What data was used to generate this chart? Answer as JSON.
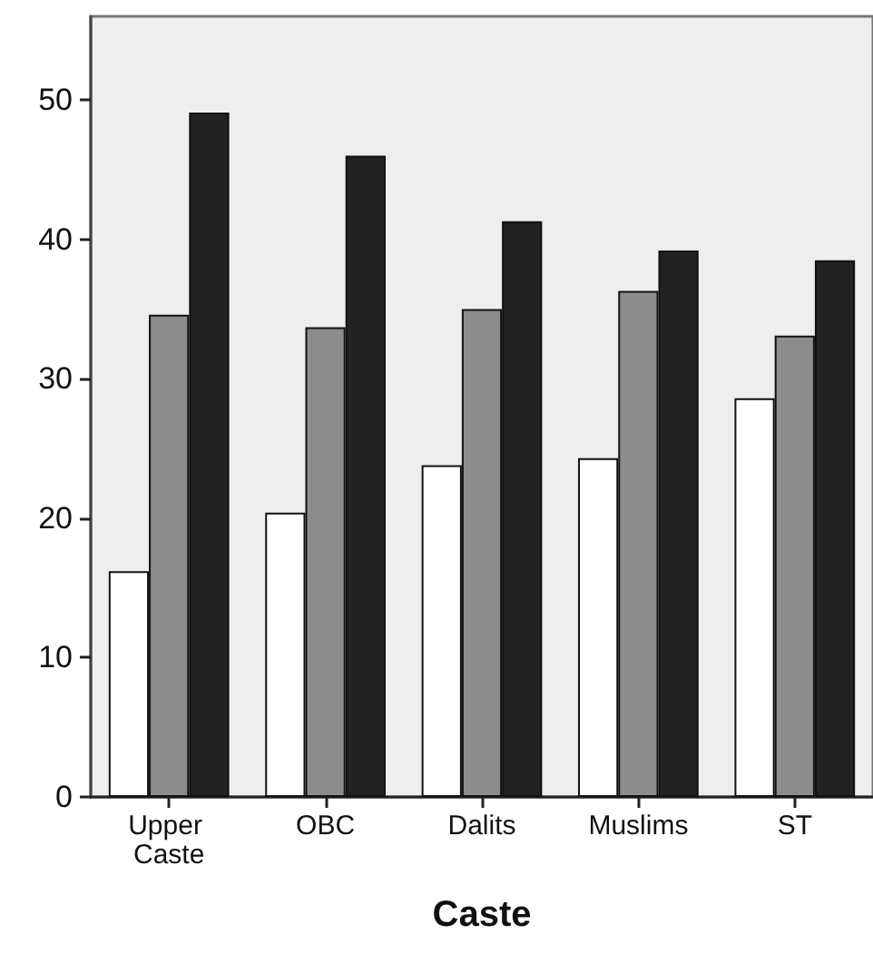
{
  "chart_data": {
    "type": "bar",
    "xlabel": "Caste",
    "categories": [
      "Upper Caste",
      "OBC",
      "Dalits",
      "Muslims",
      "ST"
    ],
    "series": [
      {
        "color": "#ffffff",
        "values": [
          16.2,
          20.4,
          23.8,
          24.3,
          28.6
        ]
      },
      {
        "color": "#8c8c8c",
        "values": [
          34.6,
          33.7,
          35.0,
          36.3,
          33.1
        ]
      },
      {
        "color": "#222222",
        "values": [
          49.1,
          46.0,
          41.3,
          39.2,
          38.5
        ]
      }
    ],
    "ylim": [
      0,
      56
    ],
    "yticks": [
      0,
      10,
      20,
      30,
      40,
      50
    ],
    "grid": false
  }
}
